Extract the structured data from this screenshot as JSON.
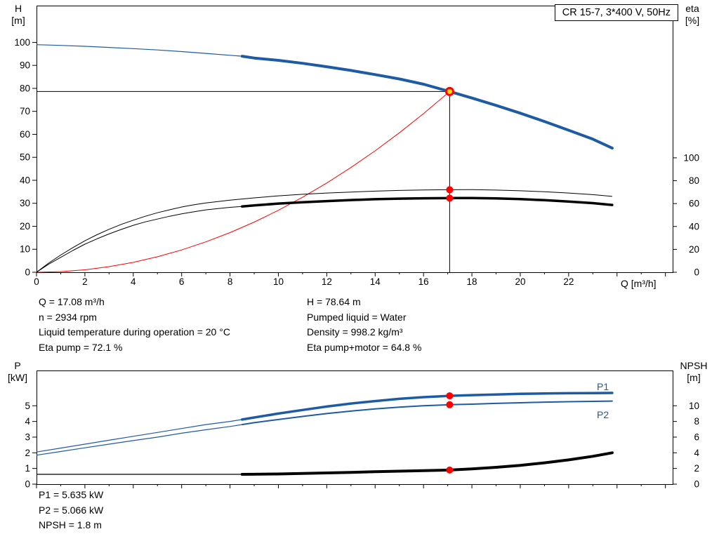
{
  "header": {
    "title": "CR 15-7, 3*400 V, 50Hz"
  },
  "info_top": {
    "left": [
      "Q = 17.08 m³/h",
      "n = 2934 rpm",
      "Liquid temperature during operation = 20 °C",
      "Eta pump = 72.1 %"
    ],
    "right": [
      "H = 78.64 m",
      "Pumped liquid = Water",
      "Density = 998.2 kg/m³",
      "Eta pump+motor = 64.8 %"
    ]
  },
  "info_bottom": [
    "P1 = 5.635 kW",
    "P2 = 5.066 kW",
    "NPSH = 1.8 m"
  ],
  "colors": {
    "curve_blue": "#1d5ba4",
    "curve_black": "#000000",
    "system_red": "#ff0000",
    "duty_fill_yellow": "#ffdd00",
    "duty_stroke_red": "#ff0000"
  },
  "chart_data": [
    {
      "type": "line",
      "name": "qh-eta-chart",
      "title": "CR 15-7, 3*400 V, 50Hz",
      "grid": false,
      "legend_position": "none",
      "x_axis": {
        "label": "Q [m³/h]",
        "min": 0,
        "max": 26.3,
        "major_step": 2,
        "minor_step": 1,
        "label_ticks": [
          0,
          2,
          4,
          6,
          8,
          10,
          12,
          14,
          16,
          18,
          20,
          22
        ]
      },
      "y_left": {
        "label": "H",
        "unit": "[m]",
        "min": 0,
        "max": 116,
        "ticks": [
          0,
          10,
          20,
          30,
          40,
          50,
          60,
          70,
          80,
          90,
          100
        ]
      },
      "y_right": {
        "label": "eta",
        "unit": "[%]",
        "min": 0,
        "max": 233,
        "ticks": [
          0,
          20,
          40,
          60,
          80,
          100
        ]
      },
      "series": [
        {
          "name": "head-curve",
          "axis": "left",
          "color": "#1d5ba4",
          "thin_width": 1.2,
          "thick_width": 4,
          "thick_from": 8.5,
          "points": [
            [
              0,
              99
            ],
            [
              1,
              98.7
            ],
            [
              2,
              98.3
            ],
            [
              3,
              97.8
            ],
            [
              4,
              97.3
            ],
            [
              5,
              96.7
            ],
            [
              6,
              96
            ],
            [
              7,
              95.2
            ],
            [
              8,
              94.4
            ],
            [
              8.5,
              94
            ],
            [
              9,
              93.2
            ],
            [
              10,
              92.2
            ],
            [
              11,
              90.9
            ],
            [
              12,
              89.4
            ],
            [
              13,
              87.8
            ],
            [
              14,
              86
            ],
            [
              15,
              84.1
            ],
            [
              16,
              81.8
            ],
            [
              17.08,
              78.64
            ],
            [
              18,
              75.8
            ],
            [
              19,
              72.6
            ],
            [
              20,
              69.2
            ],
            [
              21,
              65.6
            ],
            [
              22,
              61.8
            ],
            [
              23,
              57.9
            ],
            [
              23.8,
              54
            ]
          ]
        },
        {
          "name": "system-curve",
          "axis": "left",
          "color": "#ff0000",
          "thin_width": 1,
          "thick_width": 1,
          "thick_from": 999,
          "points": [
            [
              0,
              0
            ],
            [
              1,
              0.27
            ],
            [
              2,
              1.08
            ],
            [
              3,
              2.43
            ],
            [
              4,
              4.31
            ],
            [
              5,
              6.74
            ],
            [
              6,
              9.71
            ],
            [
              7,
              13.21
            ],
            [
              8,
              17.26
            ],
            [
              9,
              21.84
            ],
            [
              10,
              26.96
            ],
            [
              11,
              32.62
            ],
            [
              12,
              38.82
            ],
            [
              13,
              45.57
            ],
            [
              14,
              52.85
            ],
            [
              15,
              60.67
            ],
            [
              16,
              69.03
            ],
            [
              17.08,
              78.64
            ]
          ]
        },
        {
          "name": "eta-pump-curve",
          "axis": "right",
          "color": "#000000",
          "thin_width": 1,
          "thick_width": 1,
          "thick_from": 999,
          "points": [
            [
              0,
              0
            ],
            [
              0.5,
              8
            ],
            [
              1,
              15
            ],
            [
              1.5,
              21.5
            ],
            [
              2,
              27.5
            ],
            [
              2.5,
              32.8
            ],
            [
              3,
              37.5
            ],
            [
              3.5,
              41.8
            ],
            [
              4,
              45.5
            ],
            [
              4.5,
              48.9
            ],
            [
              5,
              52
            ],
            [
              5.5,
              54.6
            ],
            [
              6,
              57
            ],
            [
              6.5,
              58.9
            ],
            [
              7,
              60.5
            ],
            [
              7.5,
              61.8
            ],
            [
              8,
              63
            ],
            [
              8.5,
              64
            ],
            [
              9,
              65
            ],
            [
              10,
              66.8
            ],
            [
              11,
              68.1
            ],
            [
              12,
              69.2
            ],
            [
              13,
              70.1
            ],
            [
              14,
              70.9
            ],
            [
              15,
              71.5
            ],
            [
              16,
              71.9
            ],
            [
              17.08,
              72.1
            ],
            [
              18,
              72.15
            ],
            [
              19,
              71.8
            ],
            [
              20,
              71.2
            ],
            [
              21,
              70.3
            ],
            [
              22,
              69.2
            ],
            [
              23,
              67.8
            ],
            [
              23.8,
              66.3
            ]
          ]
        },
        {
          "name": "eta-pump-motor-curve",
          "axis": "right",
          "color": "#000000",
          "thin_width": 1,
          "thick_width": 3.5,
          "thick_from": 8.5,
          "points": [
            [
              0,
              0
            ],
            [
              0.5,
              7
            ],
            [
              1,
              13
            ],
            [
              1.5,
              19
            ],
            [
              2,
              24.5
            ],
            [
              2.5,
              29.2
            ],
            [
              3,
              33.5
            ],
            [
              3.5,
              37.4
            ],
            [
              4,
              41
            ],
            [
              4.5,
              44
            ],
            [
              5,
              46.5
            ],
            [
              5.5,
              48.9
            ],
            [
              6,
              51
            ],
            [
              6.5,
              52.8
            ],
            [
              7,
              54.5
            ],
            [
              7.5,
              55.7
            ],
            [
              8,
              56.7
            ],
            [
              8.5,
              57.5
            ],
            [
              9,
              58.4
            ],
            [
              10,
              60
            ],
            [
              11,
              61.2
            ],
            [
              12,
              62.2
            ],
            [
              13,
              63.1
            ],
            [
              14,
              63.8
            ],
            [
              15,
              64.3
            ],
            [
              16,
              64.6
            ],
            [
              17.08,
              64.8
            ],
            [
              18,
              64.85
            ],
            [
              19,
              64.5
            ],
            [
              20,
              63.9
            ],
            [
              21,
              63
            ],
            [
              22,
              61.8
            ],
            [
              23,
              60.4
            ],
            [
              23.8,
              58.8
            ]
          ]
        }
      ],
      "duty_point": {
        "x": 17.08,
        "y": 78.64,
        "axis": "left",
        "fill": "#ffdd00",
        "stroke": "#ff0000"
      },
      "guide_lines": {
        "vertical_x": 17.08,
        "horizontal_y": 78.64
      },
      "markers": [
        {
          "x": 17.08,
          "y": 72.1,
          "axis": "right",
          "color": "#ff0000",
          "name": "eta-pump-duty-dot"
        },
        {
          "x": 17.08,
          "y": 64.8,
          "axis": "right",
          "color": "#ff0000",
          "name": "eta-pump-motor-duty-dot"
        }
      ]
    },
    {
      "type": "line",
      "name": "power-npsh-chart",
      "grid": false,
      "legend_position": "inline-right",
      "x_axis": {
        "label": "",
        "min": 0,
        "max": 26.3,
        "major_step": 2,
        "minor_step": 1,
        "label_ticks": []
      },
      "y_left": {
        "label": "P",
        "unit": "[kW]",
        "min": 0,
        "max": 7.25,
        "ticks": [
          0,
          1,
          2,
          3,
          4,
          5
        ]
      },
      "y_right": {
        "label": "NPSH",
        "unit": "[m]",
        "min": 0,
        "max": 14.5,
        "ticks": [
          0,
          2,
          4,
          6,
          8,
          10
        ]
      },
      "series": [
        {
          "name": "p1-curve",
          "axis": "left",
          "color": "#1d5ba4",
          "thin_width": 1.2,
          "thick_width": 3.5,
          "thick_from": 8.5,
          "points": [
            [
              0,
              2.05
            ],
            [
              1,
              2.3
            ],
            [
              2,
              2.55
            ],
            [
              3,
              2.8
            ],
            [
              4,
              3.05
            ],
            [
              5,
              3.3
            ],
            [
              6,
              3.55
            ],
            [
              7,
              3.8
            ],
            [
              8,
              4.0
            ],
            [
              8.5,
              4.12
            ],
            [
              9,
              4.25
            ],
            [
              10,
              4.5
            ],
            [
              11,
              4.73
            ],
            [
              12,
              4.95
            ],
            [
              13,
              5.14
            ],
            [
              14,
              5.3
            ],
            [
              15,
              5.44
            ],
            [
              16,
              5.55
            ],
            [
              17.08,
              5.635
            ],
            [
              18,
              5.68
            ],
            [
              19,
              5.72
            ],
            [
              20,
              5.76
            ],
            [
              21,
              5.78
            ],
            [
              22,
              5.8
            ],
            [
              23,
              5.81
            ],
            [
              23.8,
              5.82
            ]
          ]
        },
        {
          "name": "p2-curve",
          "axis": "left",
          "color": "#1d5ba4",
          "thin_width": 1.2,
          "thick_width": 2,
          "thick_from": 8.5,
          "points": [
            [
              0,
              1.85
            ],
            [
              1,
              2.08
            ],
            [
              2,
              2.32
            ],
            [
              3,
              2.55
            ],
            [
              4,
              2.78
            ],
            [
              5,
              3.0
            ],
            [
              6,
              3.25
            ],
            [
              7,
              3.47
            ],
            [
              8,
              3.68
            ],
            [
              8.5,
              3.8
            ],
            [
              9,
              3.92
            ],
            [
              10,
              4.12
            ],
            [
              11,
              4.32
            ],
            [
              12,
              4.5
            ],
            [
              13,
              4.66
            ],
            [
              14,
              4.8
            ],
            [
              15,
              4.91
            ],
            [
              16,
              5.0
            ],
            [
              17.08,
              5.066
            ],
            [
              18,
              5.1
            ],
            [
              19,
              5.15
            ],
            [
              20,
              5.19
            ],
            [
              21,
              5.23
            ],
            [
              22,
              5.26
            ],
            [
              23,
              5.28
            ],
            [
              23.8,
              5.3
            ]
          ]
        },
        {
          "name": "npsh-curve",
          "axis": "right",
          "color": "#000000",
          "thin_width": 1.2,
          "thick_width": 4,
          "thick_from": 8.5,
          "points": [
            [
              0,
              1.25
            ],
            [
              8.5,
              1.25
            ],
            [
              9,
              1.26
            ],
            [
              10,
              1.3
            ],
            [
              11,
              1.36
            ],
            [
              12,
              1.43
            ],
            [
              13,
              1.5
            ],
            [
              14,
              1.58
            ],
            [
              15,
              1.66
            ],
            [
              16,
              1.72
            ],
            [
              17.08,
              1.8
            ],
            [
              18,
              1.95
            ],
            [
              19,
              2.15
            ],
            [
              20,
              2.4
            ],
            [
              21,
              2.72
            ],
            [
              22,
              3.1
            ],
            [
              23,
              3.55
            ],
            [
              23.8,
              4.0
            ]
          ]
        }
      ],
      "markers": [
        {
          "x": 17.08,
          "y": 5.635,
          "axis": "left",
          "color": "#ff0000",
          "name": "p1-duty-dot"
        },
        {
          "x": 17.08,
          "y": 5.066,
          "axis": "left",
          "color": "#ff0000",
          "name": "p2-duty-dot"
        },
        {
          "x": 17.08,
          "y": 1.8,
          "axis": "right",
          "color": "#ff0000",
          "name": "npsh-duty-dot"
        }
      ],
      "series_labels": [
        "P1",
        "P2"
      ]
    }
  ]
}
